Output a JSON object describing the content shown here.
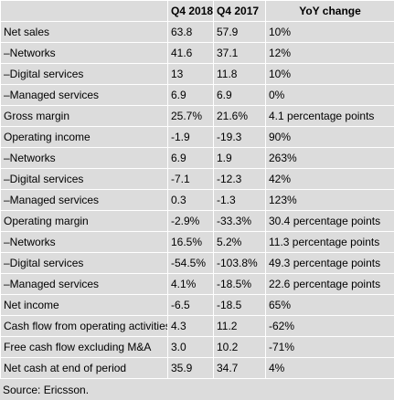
{
  "table": {
    "headers": [
      "",
      "Q4 2018",
      "Q4 2017",
      "YoY change"
    ],
    "rows": [
      [
        "Net sales",
        "63.8",
        "57.9",
        "10%"
      ],
      [
        "–Networks",
        "41.6",
        "37.1",
        "12%"
      ],
      [
        "–Digital services",
        "13",
        "11.8",
        "10%"
      ],
      [
        "–Managed services",
        "6.9",
        "6.9",
        "0%"
      ],
      [
        "Gross margin",
        "25.7%",
        "21.6%",
        "4.1 percentage points"
      ],
      [
        "Operating income",
        "-1.9",
        "-19.3",
        "90%"
      ],
      [
        "–Networks",
        "6.9",
        "1.9",
        "263%"
      ],
      [
        "–Digital services",
        "-7.1",
        "-12.3",
        "42%"
      ],
      [
        "–Managed services",
        "0.3",
        "-1.3",
        "123%"
      ],
      [
        "Operating margin",
        "-2.9%",
        "-33.3%",
        "30.4 percentage points"
      ],
      [
        "–Networks",
        "16.5%",
        "5.2%",
        "11.3 percentage points"
      ],
      [
        "–Digital services",
        "-54.5%",
        "-103.8%",
        "49.3 percentage points"
      ],
      [
        "–Managed services",
        "4.1%",
        "-18.5%",
        "22.6 percentage points"
      ],
      [
        "Net income",
        "-6.5",
        "-18.5",
        "65%"
      ],
      [
        "Cash flow from operating activities",
        "4.3",
        "11.2",
        "-62%"
      ],
      [
        "Free cash flow excluding M&A",
        "3.0",
        "10.2",
        "-71%"
      ],
      [
        "Net cash at end of period",
        "35.9",
        "34.7",
        "4%"
      ]
    ]
  },
  "source": "Source: Ericsson."
}
